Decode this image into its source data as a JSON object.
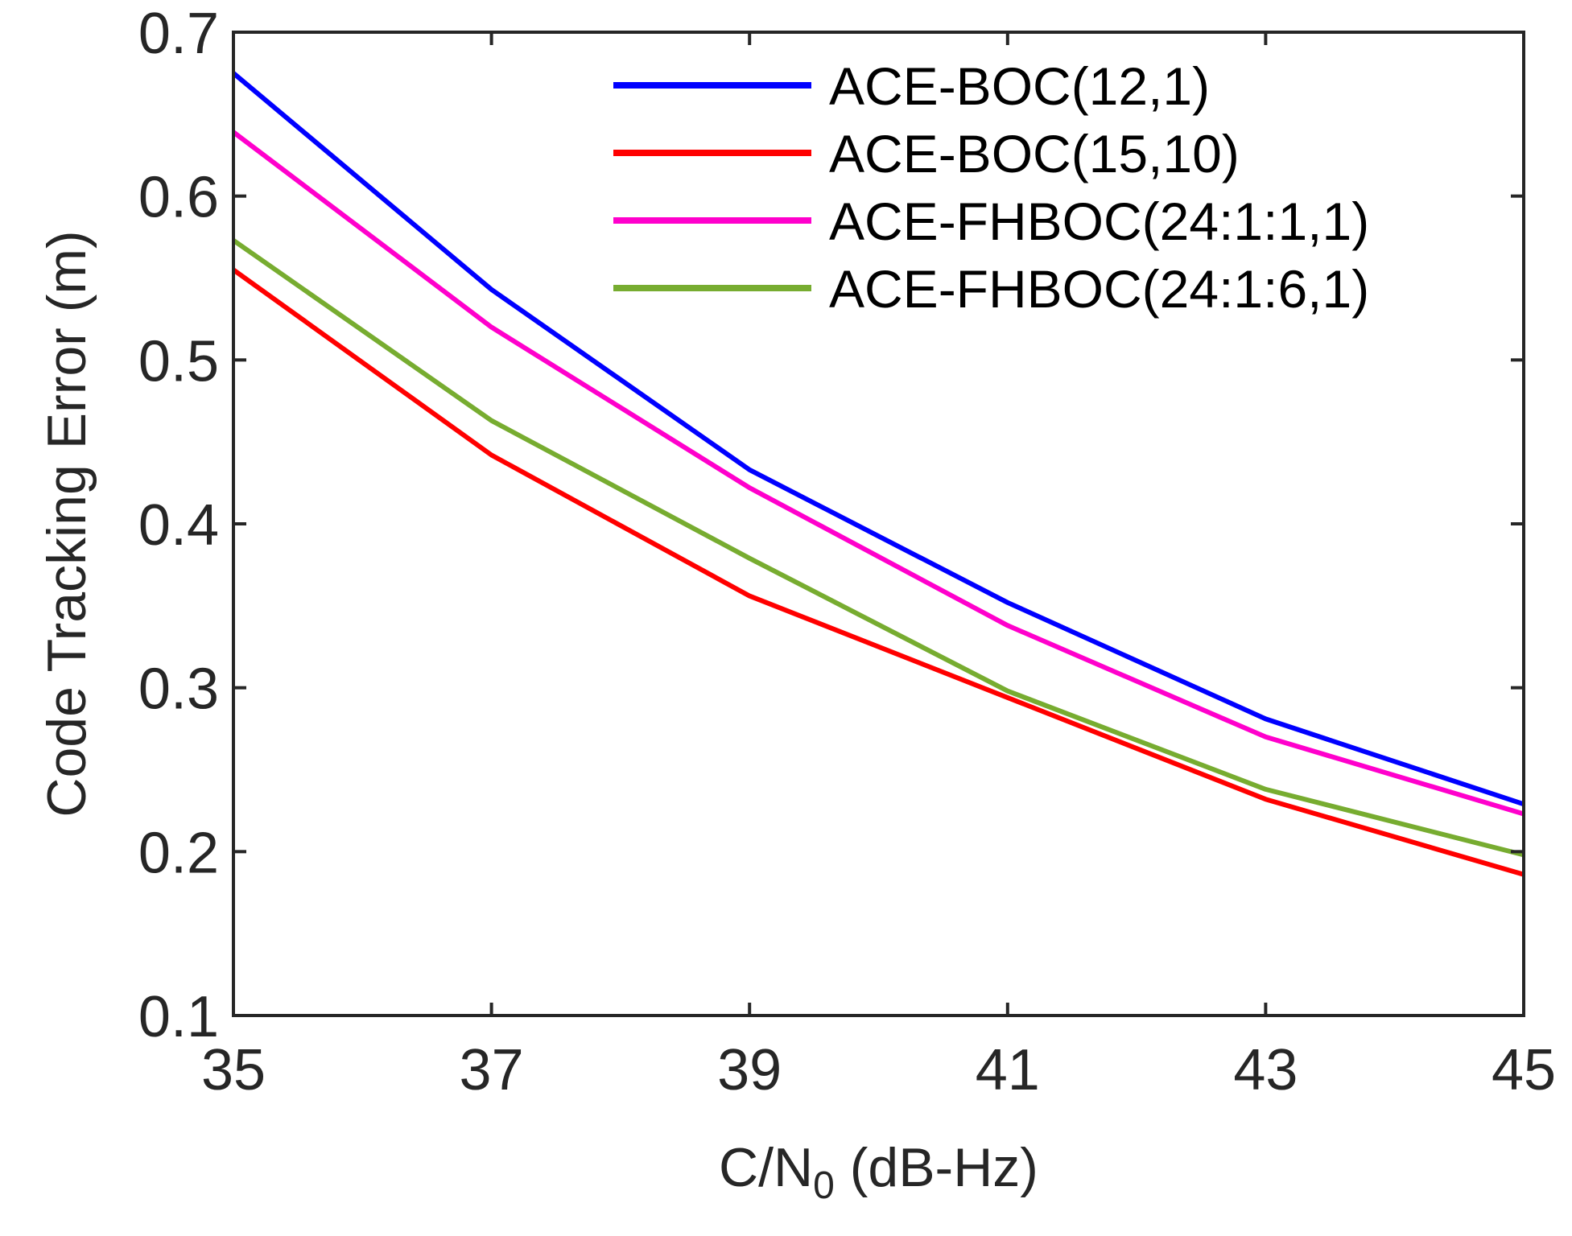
{
  "chart_data": {
    "type": "line",
    "title": "",
    "xlabel": "C/N",
    "xlabel_subscript": "0",
    "xlabel_suffix": " (dB-Hz)",
    "ylabel": "Code Tracking Error (m)",
    "xlim": [
      35,
      45
    ],
    "ylim": [
      0.1,
      0.7
    ],
    "xticks": [
      35,
      37,
      39,
      41,
      43,
      45
    ],
    "xtick_labels": [
      "35",
      "37",
      "39",
      "41",
      "43",
      "45"
    ],
    "yticks": [
      0.1,
      0.2,
      0.3,
      0.4,
      0.5,
      0.6,
      0.7
    ],
    "ytick_labels": [
      "0.1",
      "0.2",
      "0.3",
      "0.4",
      "0.5",
      "0.6",
      "0.7"
    ],
    "grid": false,
    "legend_position": "top-right",
    "x": [
      35,
      37,
      39,
      41,
      43,
      45
    ],
    "series": [
      {
        "name": "ACE-BOC(12,1)",
        "color": "#0000ff",
        "values": [
          0.675,
          0.543,
          0.433,
          0.352,
          0.281,
          0.229
        ]
      },
      {
        "name": "ACE-BOC(15,10)",
        "color": "#ff0000",
        "values": [
          0.555,
          0.442,
          0.356,
          0.294,
          0.232,
          0.186
        ]
      },
      {
        "name": "ACE-FHBOC(24:1:1,1)",
        "color": "#ff00cc",
        "values": [
          0.639,
          0.52,
          0.422,
          0.338,
          0.27,
          0.223
        ]
      },
      {
        "name": "ACE-FHBOC(24:1:6,1)",
        "color": "#77ac30",
        "values": [
          0.573,
          0.463,
          0.379,
          0.298,
          0.238,
          0.198
        ]
      }
    ]
  }
}
